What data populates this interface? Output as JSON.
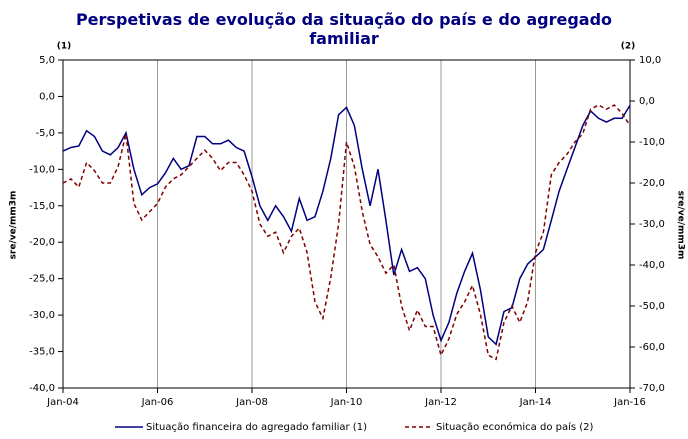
{
  "chart_data": {
    "type": "line",
    "title": "Perspetivas de evolução da situação do país e do agregado familiar",
    "y_axis_label": "sre/ve/mm3m",
    "y2_axis_label": "sre/ve/mm3m",
    "y_axis_note": "(1)",
    "y2_axis_note": "(2)",
    "categories": [
      "Jan-04",
      null,
      null,
      null,
      null,
      null,
      null,
      null,
      null,
      null,
      null,
      null,
      "Jan-06",
      null,
      null,
      null,
      null,
      null,
      null,
      null,
      null,
      null,
      null,
      null,
      "Jan-08",
      null,
      null,
      null,
      null,
      null,
      null,
      null,
      null,
      null,
      null,
      null,
      "Jan-10",
      null,
      null,
      null,
      null,
      null,
      null,
      null,
      null,
      null,
      null,
      null,
      "Jan-12",
      null,
      null,
      null,
      null,
      null,
      null,
      null,
      null,
      null,
      null,
      null,
      "Jan-14",
      null,
      null,
      null,
      null,
      null,
      null,
      null,
      null,
      null,
      null,
      null,
      "Jan-16"
    ],
    "grid": true,
    "ylim": [
      -40,
      5
    ],
    "yticks": [
      {
        "value": -40,
        "label": "-40,0"
      },
      {
        "value": -35,
        "label": "-35,0"
      },
      {
        "value": -30,
        "label": "-30,0"
      },
      {
        "value": -25,
        "label": "-25,0"
      },
      {
        "value": -20,
        "label": "-20,0"
      },
      {
        "value": -15,
        "label": "-15,0"
      },
      {
        "value": -10,
        "label": "-10,0"
      },
      {
        "value": -5,
        "label": "-5,0"
      },
      {
        "value": 0,
        "label": "0,0"
      },
      {
        "value": 5,
        "label": "5,0"
      }
    ],
    "y2lim": [
      -70,
      10
    ],
    "y2ticks": [
      {
        "value": -70,
        "label": "-70,0"
      },
      {
        "value": -60,
        "label": "-60,0"
      },
      {
        "value": -50,
        "label": "-50,0"
      },
      {
        "value": -40,
        "label": "-40,0"
      },
      {
        "value": -30,
        "label": "-30,0"
      },
      {
        "value": -20,
        "label": "-20,0"
      },
      {
        "value": -10,
        "label": "-10,0"
      },
      {
        "value": 0,
        "label": "0,0"
      },
      {
        "value": 10,
        "label": "10,0"
      }
    ],
    "legend": "bottom",
    "series": [
      {
        "name": "Situação financeira do agregado familiar (1)",
        "color": "#000080",
        "dashed": false,
        "values": [
          -7.5,
          -7,
          -6.8,
          -4.7,
          -5.5,
          -7.5,
          -8,
          -7,
          -5,
          -10,
          -13.5,
          -12.5,
          -12,
          -10.5,
          -8.5,
          -10,
          -9.5,
          -5.5,
          -5.5,
          -6.5,
          -6.5,
          -6,
          -7,
          -7.5,
          -11,
          -15,
          -17,
          -15,
          -16.5,
          -18.5,
          -14,
          -17,
          -16.5,
          -13,
          -8.5,
          -2.5,
          -1.5,
          -4,
          -10,
          -15,
          -10,
          -17,
          -24.5,
          -21,
          -24,
          -23.5,
          -25,
          -30,
          -33.5,
          -31,
          -27,
          -24,
          -21.5,
          -26.5,
          -33,
          -34,
          -29.5,
          -29,
          -25,
          -23,
          -22,
          -21,
          -17,
          -13,
          -10,
          -7,
          -4,
          -2,
          -3,
          -3.5,
          -3,
          -3,
          -1.2
        ]
      },
      {
        "name": "Situação económica do país (2)",
        "color": "#800000",
        "dashed": true,
        "axis": "y2",
        "values": [
          -20,
          -19,
          -21,
          -15,
          -17,
          -20,
          -20,
          -16,
          -8,
          -25,
          -29,
          -27,
          -25,
          -21,
          -19,
          -18,
          -16,
          -14,
          -12,
          -14,
          -17,
          -15,
          -15,
          -18,
          -22,
          -30,
          -33,
          -32,
          -37,
          -33,
          -31,
          -37,
          -49,
          -53,
          -43,
          -30,
          -10,
          -16,
          -27,
          -35,
          -38,
          -42,
          -40,
          -50,
          -56,
          -51,
          -55,
          -55,
          -62,
          -58,
          -52,
          -49,
          -45,
          -52,
          -62,
          -63,
          -54,
          -50,
          -54,
          -49,
          -37,
          -32,
          -18,
          -15,
          -13,
          -10,
          -8,
          -2,
          -1,
          -2,
          -1,
          -3,
          -6
        ]
      }
    ]
  }
}
